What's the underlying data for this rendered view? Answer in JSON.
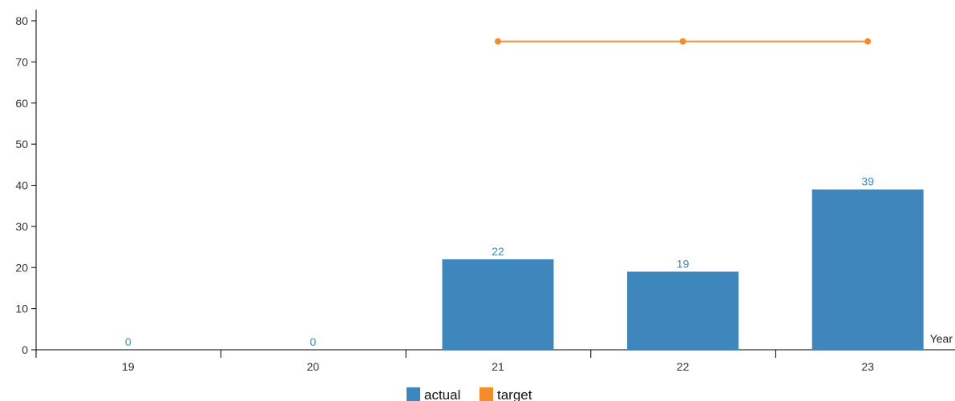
{
  "chart_data": {
    "type": "bar",
    "categories": [
      "19",
      "20",
      "21",
      "22",
      "23"
    ],
    "series": [
      {
        "name": "actual",
        "type": "bar",
        "color": "#3d87bc",
        "values": [
          0,
          0,
          22,
          19,
          39
        ],
        "data_labels": [
          "0",
          "0",
          "22",
          "19",
          "39"
        ]
      },
      {
        "name": "target",
        "type": "line",
        "color": "#f58b2a",
        "values": [
          null,
          null,
          75,
          75,
          75
        ]
      }
    ],
    "xlabel": "Year",
    "ylabel": "",
    "ylim": [
      0,
      80
    ],
    "yticks": [
      "0",
      "10",
      "20",
      "30",
      "40",
      "50",
      "60",
      "70",
      "80"
    ],
    "grid": false,
    "legend": {
      "position": "bottom-center",
      "items": [
        "actual",
        "target"
      ]
    }
  }
}
